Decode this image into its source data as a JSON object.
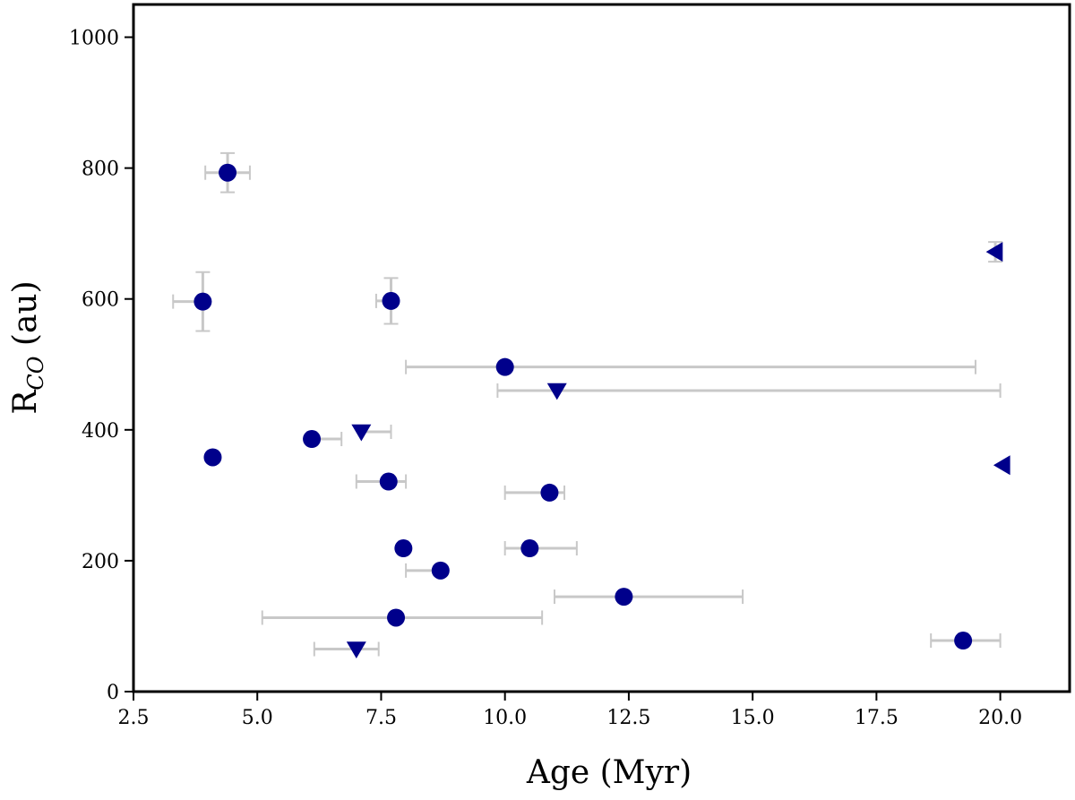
{
  "chart_data": {
    "type": "scatter",
    "xlabel": "Age (Myr)",
    "ylabel": {
      "main": "R",
      "sub": "CO",
      "rest": " (au)"
    },
    "xlim": [
      2.5,
      21.4
    ],
    "ylim": [
      0,
      1050
    ],
    "xticks": [
      2.5,
      5.0,
      7.5,
      10.0,
      12.5,
      15.0,
      17.5,
      20.0
    ],
    "xtick_labels": [
      "2.5",
      "5.0",
      "7.5",
      "10.0",
      "12.5",
      "15.0",
      "17.5",
      "20.0"
    ],
    "yticks": [
      0,
      200,
      400,
      600,
      800,
      1000
    ],
    "ytick_labels": [
      "0",
      "200",
      "400",
      "600",
      "800",
      "1000"
    ],
    "marker_color": "#00008b",
    "errorbar_color": "#c8c8c8",
    "points": [
      {
        "x": 4.4,
        "y": 793,
        "xerr": [
          0.45,
          0.45
        ],
        "yerr": [
          30,
          30
        ],
        "marker": "circle"
      },
      {
        "x": 3.9,
        "y": 596,
        "xerr": [
          0.6,
          0.0
        ],
        "yerr": [
          45,
          45
        ],
        "marker": "circle"
      },
      {
        "x": 7.7,
        "y": 597,
        "xerr": [
          0.3,
          0.1
        ],
        "yerr": [
          35,
          35
        ],
        "marker": "circle"
      },
      {
        "x": 4.1,
        "y": 358,
        "xerr": [
          0,
          0
        ],
        "yerr": [
          0,
          0
        ],
        "marker": "circle"
      },
      {
        "x": 6.1,
        "y": 386,
        "xerr": [
          0,
          0.6
        ],
        "yerr": [
          0,
          0
        ],
        "marker": "circle"
      },
      {
        "x": 7.1,
        "y": 397,
        "xerr": [
          0,
          0.6
        ],
        "yerr": [
          0,
          0
        ],
        "marker": "triangle-down"
      },
      {
        "x": 7.65,
        "y": 321,
        "xerr": [
          0.65,
          0.35
        ],
        "yerr": [
          0,
          0
        ],
        "marker": "circle"
      },
      {
        "x": 10.0,
        "y": 496,
        "xerr": [
          2.0,
          9.5
        ],
        "yerr": [
          0,
          0
        ],
        "marker": "circle"
      },
      {
        "x": 11.05,
        "y": 460,
        "xerr": [
          1.2,
          8.95
        ],
        "yerr": [
          0,
          0
        ],
        "marker": "triangle-down"
      },
      {
        "x": 10.9,
        "y": 304,
        "xerr": [
          0.9,
          0.3
        ],
        "yerr": [
          0,
          0
        ],
        "marker": "circle"
      },
      {
        "x": 7.95,
        "y": 219,
        "xerr": [
          0,
          0
        ],
        "yerr": [
          0,
          0
        ],
        "marker": "circle"
      },
      {
        "x": 10.5,
        "y": 219,
        "xerr": [
          0.5,
          0.95
        ],
        "yerr": [
          0,
          0
        ],
        "marker": "circle"
      },
      {
        "x": 8.7,
        "y": 185,
        "xerr": [
          0.7,
          0
        ],
        "yerr": [
          0,
          0
        ],
        "marker": "circle"
      },
      {
        "x": 12.4,
        "y": 145,
        "xerr": [
          1.4,
          2.4
        ],
        "yerr": [
          0,
          0
        ],
        "marker": "circle"
      },
      {
        "x": 7.8,
        "y": 113,
        "xerr": [
          2.7,
          2.95
        ],
        "yerr": [
          0,
          0
        ],
        "marker": "circle"
      },
      {
        "x": 7.0,
        "y": 65,
        "xerr": [
          0.85,
          0.45
        ],
        "yerr": [
          0,
          0
        ],
        "marker": "triangle-down"
      },
      {
        "x": 19.25,
        "y": 78,
        "xerr": [
          0.65,
          0.75
        ],
        "yerr": [
          0,
          0
        ],
        "marker": "circle"
      },
      {
        "x": 19.9,
        "y": 672,
        "xerr": [
          0,
          0
        ],
        "yerr": [
          15,
          15
        ],
        "marker": "triangle-left"
      },
      {
        "x": 20.05,
        "y": 346,
        "xerr": [
          0,
          0
        ],
        "yerr": [
          0,
          0
        ],
        "marker": "triangle-left"
      }
    ]
  }
}
